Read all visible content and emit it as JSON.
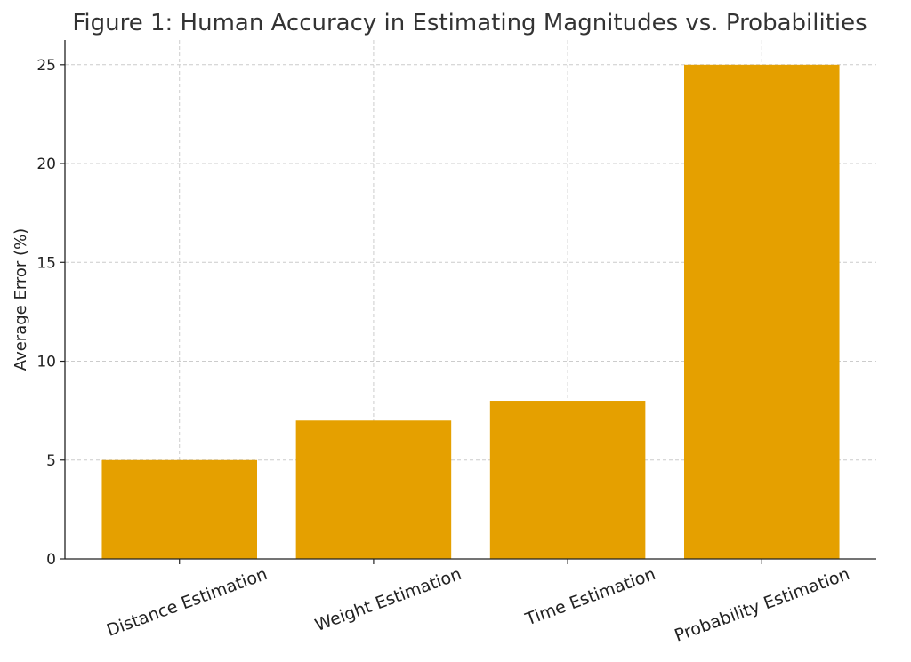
{
  "chart_data": {
    "type": "bar",
    "title": "Figure 1: Human Accuracy in Estimating Magnitudes vs. Probabilities",
    "xlabel": "",
    "ylabel": "Average Error (%)",
    "categories": [
      "Distance Estimation",
      "Weight Estimation",
      "Time Estimation",
      "Probability Estimation"
    ],
    "values": [
      5,
      7,
      8,
      25
    ],
    "ylim": [
      0,
      26.25
    ],
    "yticks": [
      0,
      5,
      10,
      15,
      20,
      25
    ],
    "grid": true,
    "colors": {
      "bar": "#E5A000"
    }
  }
}
